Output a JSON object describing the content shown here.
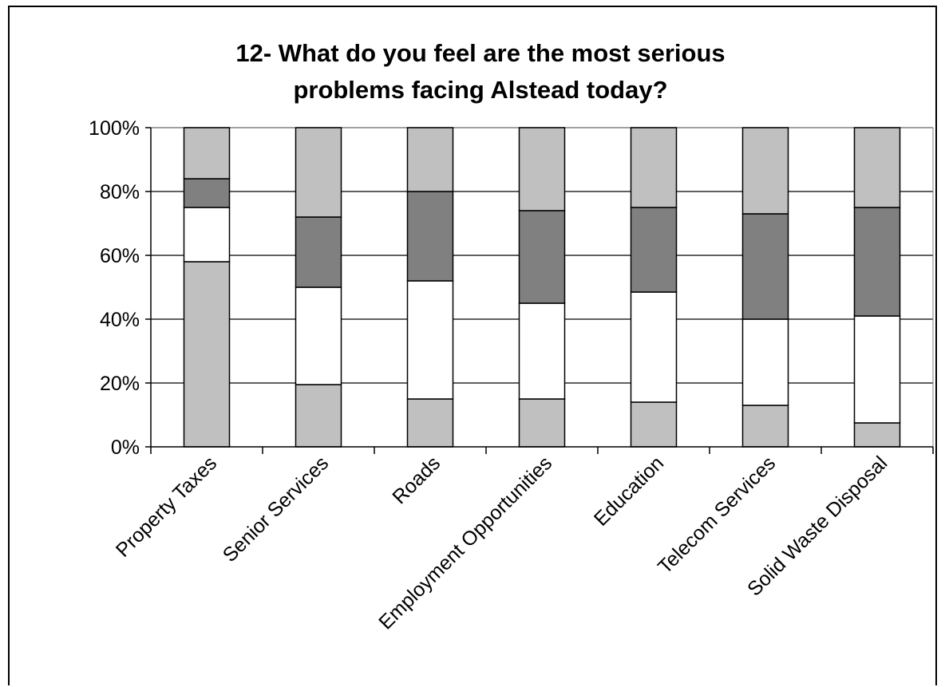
{
  "chart_data": {
    "type": "bar",
    "stacked": true,
    "percent_stacked": true,
    "title": "12- What do you feel are the most serious problems facing Alstead today?",
    "title_lines": [
      "12- What do you feel are the most serious",
      "problems facing Alstead today?"
    ],
    "xlabel": "",
    "ylabel": "",
    "ylim": [
      0,
      100
    ],
    "y_ticks": [
      "0%",
      "20%",
      "40%",
      "60%",
      "80%",
      "100%"
    ],
    "y_tick_values": [
      0,
      20,
      40,
      60,
      80,
      100
    ],
    "grid": true,
    "legend": "none",
    "categories": [
      "Property Taxes",
      "Senior Services",
      "Roads",
      "Employment Opportunities",
      "Education",
      "Telecom Services",
      "Solid Waste Disposal"
    ],
    "series": [
      {
        "color": "#c0c0c0",
        "values": [
          58,
          19.5,
          15,
          15,
          14,
          13,
          7.5
        ]
      },
      {
        "color": "#ffffff",
        "values": [
          17,
          30.5,
          37,
          30,
          34.5,
          27,
          33.5
        ]
      },
      {
        "color": "#808080",
        "values": [
          9,
          22,
          28,
          29,
          26.5,
          33,
          34
        ]
      },
      {
        "color": "#c0c0c0",
        "values": [
          16,
          28,
          20,
          26,
          25,
          27,
          25
        ]
      }
    ]
  }
}
